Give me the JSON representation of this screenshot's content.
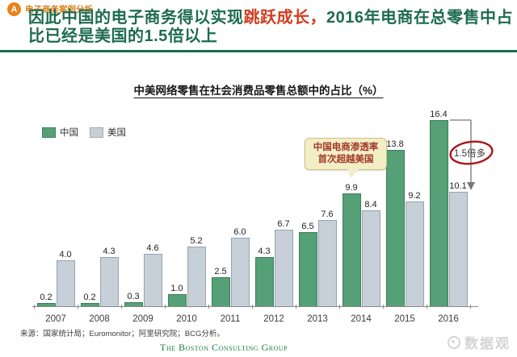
{
  "header": {
    "badge": "A",
    "category": "电子商务案例分析",
    "title": {
      "pre": "因此中国的电子商务得以实现",
      "highlight": "跳跃成长，",
      "post": "2016年电商在总零售中占比已经是美国的1.5倍以上"
    }
  },
  "chart_data": {
    "type": "bar",
    "title": "中美网络零售在社会消费品零售总额中的占比（%）",
    "categories": [
      "2007",
      "2008",
      "2009",
      "2010",
      "2011",
      "2012",
      "2013",
      "2014",
      "2015",
      "2016"
    ],
    "series": [
      {
        "name": "中国",
        "color": "#55a076",
        "values": [
          0.2,
          0.2,
          0.3,
          1.0,
          2.5,
          4.3,
          6.5,
          9.9,
          13.8,
          16.4
        ]
      },
      {
        "name": "美国",
        "color": "#c7d0d9",
        "values": [
          4.0,
          4.3,
          4.6,
          5.2,
          6.0,
          6.7,
          7.6,
          8.4,
          9.2,
          10.1
        ]
      }
    ],
    "ylim": [
      0,
      17
    ],
    "grid": false,
    "value_labels": true,
    "legend_position": "top-left",
    "annotations": {
      "callout_text": "中国电商渗透率\n首次超越美国",
      "ratio_label": "1.5倍多"
    }
  },
  "footer": {
    "source": "来源：国家统计局；Euromonitor；阿里研究院；BCG分析。",
    "brand": "The Boston Consulting Group",
    "watermark": "数据观"
  },
  "colors": {
    "accent_orange": "#e8841a",
    "title_green": "#1e6b52",
    "highlight_red": "#d03d1e",
    "china_bar": "#55a076",
    "us_bar": "#c7d0d9",
    "callout_bg": "#f2eec6",
    "callout_text": "#a33b2b",
    "circle_red": "#a8171d",
    "brand_green": "#1b7a4c"
  }
}
